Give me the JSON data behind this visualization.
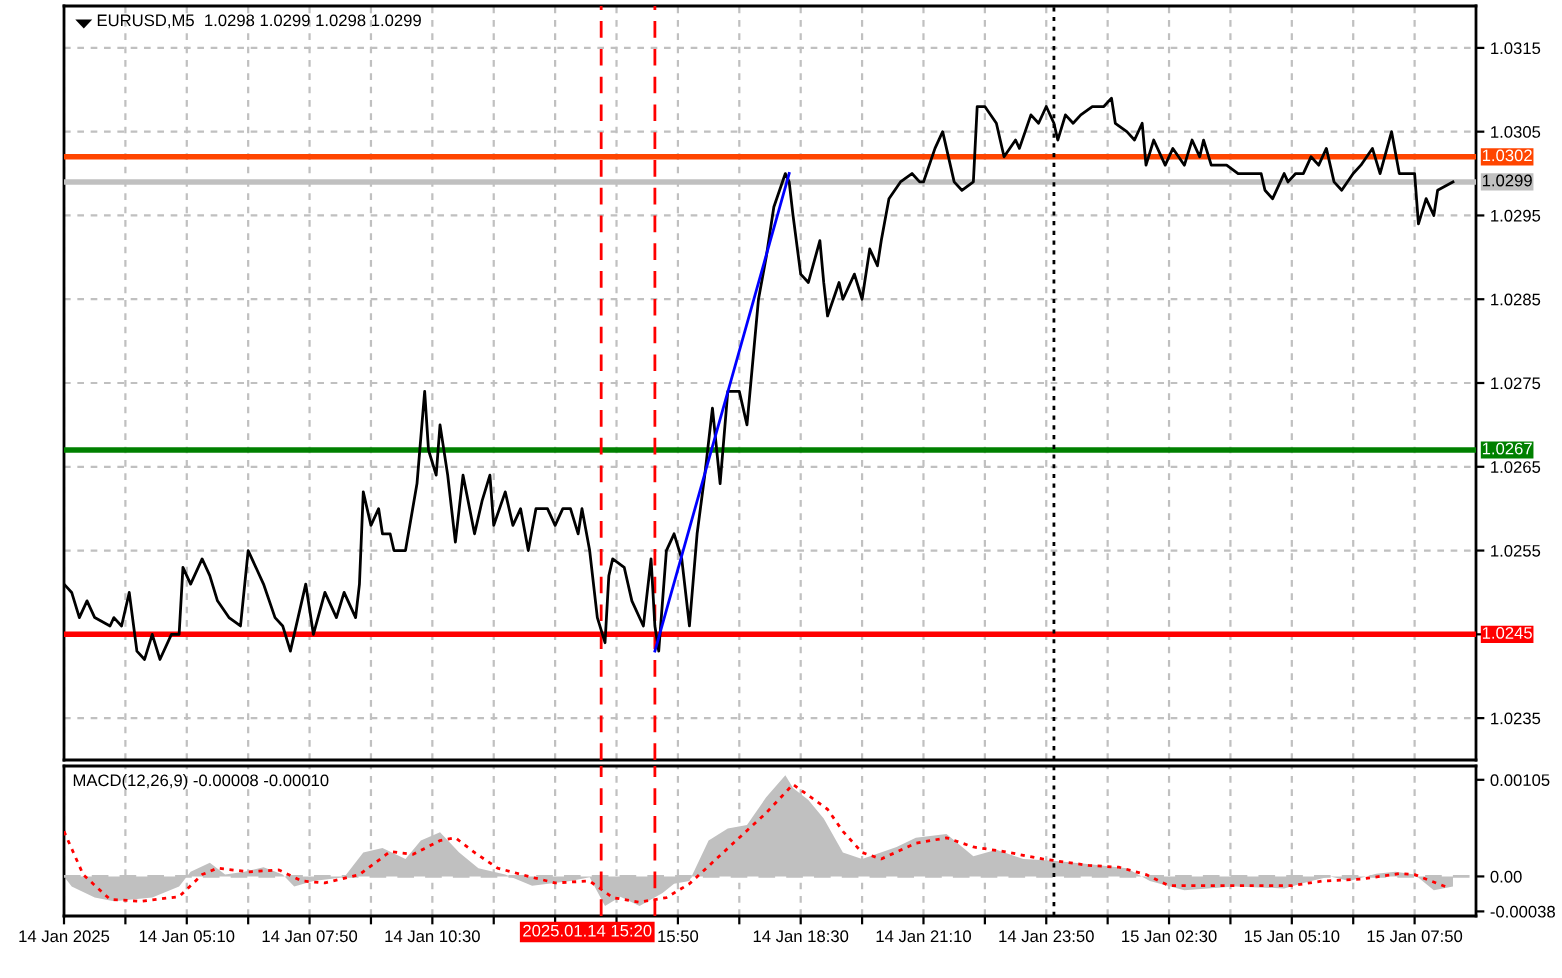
{
  "chart_data": [
    {
      "type": "line",
      "title": "EURUSD,M5  1.0298 1.0299 1.0298 1.0299",
      "grid": true,
      "tick_labels": "y",
      "x": [
        "2025-01-14T02:30",
        "2025-01-14T02:40",
        "2025-01-14T02:50",
        "2025-01-14T03:00",
        "2025-01-14T03:10",
        "2025-01-14T03:30",
        "2025-01-14T03:35",
        "2025-01-14T03:45",
        "2025-01-14T03:55",
        "2025-01-14T04:05",
        "2025-01-14T04:15",
        "2025-01-14T04:25",
        "2025-01-14T04:35",
        "2025-01-14T04:50",
        "2025-01-14T05:00",
        "2025-01-14T05:05",
        "2025-01-14T05:15",
        "2025-01-14T05:30",
        "2025-01-14T05:40",
        "2025-01-14T05:50",
        "2025-01-14T06:05",
        "2025-01-14T06:20",
        "2025-01-14T06:30",
        "2025-01-14T06:50",
        "2025-01-14T07:05",
        "2025-01-14T07:15",
        "2025-01-14T07:25",
        "2025-01-14T07:45",
        "2025-01-14T07:55",
        "2025-01-14T08:10",
        "2025-01-14T08:25",
        "2025-01-14T08:35",
        "2025-01-14T08:50",
        "2025-01-14T08:55",
        "2025-01-14T09:00",
        "2025-01-14T09:10",
        "2025-01-14T09:20",
        "2025-01-14T09:25",
        "2025-01-14T09:35",
        "2025-01-14T09:40",
        "2025-01-14T09:55",
        "2025-01-14T10:10",
        "2025-01-14T10:20",
        "2025-01-14T10:25",
        "2025-01-14T10:35",
        "2025-01-14T10:40",
        "2025-01-14T10:50",
        "2025-01-14T11:00",
        "2025-01-14T11:10",
        "2025-01-14T11:25",
        "2025-01-14T11:35",
        "2025-01-14T11:45",
        "2025-01-14T11:50",
        "2025-01-14T12:05",
        "2025-01-14T12:15",
        "2025-01-14T12:25",
        "2025-01-14T12:35",
        "2025-01-14T12:45",
        "2025-01-14T13:00",
        "2025-01-14T13:10",
        "2025-01-14T13:20",
        "2025-01-14T13:30",
        "2025-01-14T13:40",
        "2025-01-14T13:45",
        "2025-01-14T13:55",
        "2025-01-14T14:05",
        "2025-01-14T14:15",
        "2025-01-14T14:20",
        "2025-01-14T14:25",
        "2025-01-14T14:40",
        "2025-01-14T14:50",
        "2025-01-14T15:05",
        "2025-01-14T15:15",
        "2025-01-14T15:20",
        "2025-01-14T15:25",
        "2025-01-14T15:35",
        "2025-01-14T15:45",
        "2025-01-14T15:55",
        "2025-01-14T16:05",
        "2025-01-14T16:15",
        "2025-01-14T16:25",
        "2025-01-14T16:35",
        "2025-01-14T16:45",
        "2025-01-14T16:55",
        "2025-01-14T17:10",
        "2025-01-14T17:20",
        "2025-01-14T17:35",
        "2025-01-14T17:45",
        "2025-01-14T17:55",
        "2025-01-14T18:10",
        "2025-01-14T18:15",
        "2025-01-14T18:20",
        "2025-01-14T18:30",
        "2025-01-14T18:40",
        "2025-01-14T18:55",
        "2025-01-14T19:00",
        "2025-01-14T19:05",
        "2025-01-14T19:20",
        "2025-01-14T19:25",
        "2025-01-14T19:40",
        "2025-01-14T19:50",
        "2025-01-14T20:00",
        "2025-01-14T20:10",
        "2025-01-14T20:15",
        "2025-01-14T20:25",
        "2025-01-14T20:40",
        "2025-01-14T20:55",
        "2025-01-14T21:05",
        "2025-01-14T21:10",
        "2025-01-14T21:25",
        "2025-01-14T21:35",
        "2025-01-14T21:50",
        "2025-01-14T22:00",
        "2025-01-14T22:15",
        "2025-01-14T22:20",
        "2025-01-14T22:30",
        "2025-01-14T22:45",
        "2025-01-14T22:55",
        "2025-01-14T23:10",
        "2025-01-14T23:15",
        "2025-01-14T23:30",
        "2025-01-14T23:40",
        "2025-01-14T23:50",
        "2025-01-15T00:00",
        "2025-01-15T00:05",
        "2025-01-15T00:15",
        "2025-01-15T00:25",
        "2025-01-15T00:35",
        "2025-01-15T00:50",
        "2025-01-15T01:05",
        "2025-01-15T01:15",
        "2025-01-15T01:20",
        "2025-01-15T01:35",
        "2025-01-15T01:45",
        "2025-01-15T01:55",
        "2025-01-15T02:00",
        "2025-01-15T02:10",
        "2025-01-15T02:25",
        "2025-01-15T02:35",
        "2025-01-15T02:50",
        "2025-01-15T03:00",
        "2025-01-15T03:10",
        "2025-01-15T03:15",
        "2025-01-15T03:25",
        "2025-01-15T03:45",
        "2025-01-15T04:00",
        "2025-01-15T04:10",
        "2025-01-15T04:30",
        "2025-01-15T04:35",
        "2025-01-15T04:45",
        "2025-01-15T05:00",
        "2025-01-15T05:05",
        "2025-01-15T05:15",
        "2025-01-15T05:25",
        "2025-01-15T05:35",
        "2025-01-15T05:45",
        "2025-01-15T05:55",
        "2025-01-15T06:05",
        "2025-01-15T06:15",
        "2025-01-15T06:30",
        "2025-01-15T06:40",
        "2025-01-15T06:55",
        "2025-01-15T07:05",
        "2025-01-15T07:20",
        "2025-01-15T07:30",
        "2025-01-15T07:50",
        "2025-01-15T07:55",
        "2025-01-15T08:05",
        "2025-01-15T08:15",
        "2025-01-15T08:20",
        "2025-01-15T08:40"
      ],
      "series": [
        {
          "color": "#000000",
          "values": [
            1.0251,
            1.025,
            1.0247,
            1.0249,
            1.0247,
            1.0246,
            1.0247,
            1.0246,
            1.025,
            1.0243,
            1.0242,
            1.0245,
            1.0242,
            1.0245,
            1.0245,
            1.0253,
            1.0251,
            1.0254,
            1.0252,
            1.0249,
            1.0247,
            1.0246,
            1.0255,
            1.0251,
            1.0247,
            1.0246,
            1.0243,
            1.0251,
            1.0245,
            1.025,
            1.0247,
            1.025,
            1.0247,
            1.0251,
            1.0262,
            1.0258,
            1.026,
            1.0257,
            1.0257,
            1.0255,
            1.0255,
            1.0263,
            1.0274,
            1.0267,
            1.0264,
            1.027,
            1.0264,
            1.0256,
            1.0264,
            1.0257,
            1.0261,
            1.0264,
            1.0258,
            1.0262,
            1.0258,
            1.026,
            1.0255,
            1.026,
            1.026,
            1.0258,
            1.026,
            1.026,
            1.0257,
            1.026,
            1.0255,
            1.0247,
            1.0244,
            1.0252,
            1.0254,
            1.0253,
            1.0249,
            1.0246,
            1.0254,
            1.0246,
            1.0243,
            1.0255,
            1.0257,
            1.0254,
            1.0246,
            1.0257,
            1.0264,
            1.0272,
            1.0263,
            1.0274,
            1.0274,
            1.027,
            1.0285,
            1.029,
            1.0296,
            1.03,
            1.0299,
            1.0295,
            1.0288,
            1.0287,
            1.0292,
            1.0287,
            1.0283,
            1.0287,
            1.0285,
            1.0288,
            1.0285,
            1.0291,
            1.0289,
            1.0292,
            1.0297,
            1.0299,
            1.03,
            1.0299,
            1.0299,
            1.0303,
            1.0305,
            1.0299,
            1.0298,
            1.0299,
            1.0308,
            1.0308,
            1.0306,
            1.0302,
            1.0304,
            1.0303,
            1.0307,
            1.0306,
            1.0308,
            1.0306,
            1.0304,
            1.0307,
            1.0306,
            1.0307,
            1.0308,
            1.0308,
            1.0309,
            1.0306,
            1.0305,
            1.0304,
            1.0306,
            1.0301,
            1.0304,
            1.0301,
            1.0303,
            1.0301,
            1.0304,
            1.0302,
            1.0304,
            1.0301,
            1.0301,
            1.03,
            1.03,
            1.03,
            1.0298,
            1.0297,
            1.03,
            1.0299,
            1.03,
            1.03,
            1.0302,
            1.0301,
            1.0303,
            1.0299,
            1.0298,
            1.03,
            1.0301,
            1.0303,
            1.03,
            1.0305,
            1.03,
            1.03,
            1.0294,
            1.0297,
            1.0295,
            1.0298,
            1.0299
          ]
        },
        {
          "type": "line",
          "color": "#0000ff",
          "x": [
            "2025-01-14T15:20",
            "2025-01-14T18:15"
          ],
          "values": [
            1.0243,
            1.03
          ]
        }
      ],
      "xlim": [
        "2025-01-14T02:30",
        "2025-01-15T09:10"
      ],
      "xticks": [
        "2025-01-14T02:30",
        "2025-01-14T03:50",
        "2025-01-14T05:10",
        "2025-01-14T06:30",
        "2025-01-14T07:50",
        "2025-01-14T09:10",
        "2025-01-14T10:30",
        "2025-01-14T11:50",
        "2025-01-14T13:10",
        "2025-01-14T14:30",
        "2025-01-14T15:50",
        "2025-01-14T17:10",
        "2025-01-14T18:30",
        "2025-01-14T19:50",
        "2025-01-14T21:10",
        "2025-01-14T22:30",
        "2025-01-14T23:50",
        "2025-01-15T01:10",
        "2025-01-15T02:30",
        "2025-01-15T03:50",
        "2025-01-15T05:10",
        "2025-01-15T06:30",
        "2025-01-15T07:50"
      ],
      "ylim": [
        1.023,
        1.032
      ],
      "yticks": [
        1.0235,
        {
          "value": 1.0245,
          "label": null
        },
        1.0255,
        1.0265,
        1.0275,
        1.0285,
        1.0295,
        1.0305,
        1.0315
      ],
      "ref_lines": [
        {
          "axis": "y",
          "value": 1.0302,
          "label": "1.0302",
          "color": "#ff4500",
          "line_style": "solid"
        },
        {
          "axis": "y",
          "value": 1.0299,
          "label": "1.0299",
          "color": "#c0c0c0",
          "line_style": "solid"
        },
        {
          "axis": "y",
          "value": 1.0267,
          "label": "1.0267",
          "color": "#008000",
          "line_style": "solid"
        },
        {
          "axis": "y",
          "value": 1.0245,
          "label": "1.0245",
          "color": "#ff0000",
          "line_style": "solid"
        },
        {
          "axis": "x",
          "value": "2025-01-14T14:10",
          "color": "#ff0000",
          "line_style": "dashed"
        },
        {
          "axis": "x",
          "value": "2025-01-14T15:20",
          "color": "#ff0000",
          "line_style": "dashed"
        },
        {
          "axis": "x",
          "value": "2025-01-15T00:00",
          "color": "#000000",
          "line_style": "dotted"
        }
      ]
    },
    {
      "type": "line",
      "title": "MACD(12,26,9) -0.00008 -0.00010",
      "grid": "x",
      "series": [
        {
          "type": "area",
          "color": "#c0c0c0",
          "x": [
            "2025-01-14T02:30",
            "2025-01-14T02:40",
            "2025-01-14T03:10",
            "2025-01-14T03:35",
            "2025-01-14T04:25",
            "2025-01-14T05:00",
            "2025-01-14T05:15",
            "2025-01-14T05:40",
            "2025-01-14T06:00",
            "2025-01-14T06:25",
            "2025-01-14T06:50",
            "2025-01-14T07:15",
            "2025-01-14T07:30",
            "2025-01-14T07:55",
            "2025-01-14T08:35",
            "2025-01-14T09:00",
            "2025-01-14T09:25",
            "2025-01-14T09:55",
            "2025-01-14T10:15",
            "2025-01-14T10:40",
            "2025-01-14T11:05",
            "2025-01-14T11:30",
            "2025-01-14T12:05",
            "2025-01-14T12:40",
            "2025-01-14T13:30",
            "2025-01-14T13:55",
            "2025-01-14T14:15",
            "2025-01-14T14:35",
            "2025-01-14T15:00",
            "2025-01-14T15:30",
            "2025-01-14T15:45",
            "2025-01-14T16:05",
            "2025-01-14T16:30",
            "2025-01-14T16:55",
            "2025-01-14T17:20",
            "2025-01-14T17:45",
            "2025-01-14T18:10",
            "2025-01-14T18:20",
            "2025-01-14T18:40",
            "2025-01-14T19:00",
            "2025-01-14T19:25",
            "2025-01-14T19:50",
            "2025-01-14T20:35",
            "2025-01-14T21:00",
            "2025-01-14T21:40",
            "2025-01-14T22:15",
            "2025-01-14T22:45",
            "2025-01-14T23:20",
            "2025-01-15T00:00",
            "2025-01-15T00:50",
            "2025-01-15T01:35",
            "2025-01-15T02:05",
            "2025-01-15T02:50",
            "2025-01-15T03:55",
            "2025-01-15T05:00",
            "2025-01-15T05:35",
            "2025-01-15T06:00",
            "2025-01-15T06:25",
            "2025-01-15T07:00",
            "2025-01-15T07:25",
            "2025-01-15T07:50",
            "2025-01-15T08:15",
            "2025-01-15T08:40"
          ],
          "values": [
            0,
            -0.00011,
            -0.00023,
            -0.00027,
            -0.00023,
            -0.00011,
            5e-05,
            0.00015,
            2e-05,
            5e-05,
            0.0001,
            2e-05,
            -0.00011,
            -5e-05,
            -1e-05,
            0.00026,
            0.00031,
            0.00019,
            0.00039,
            0.00048,
            0.00026,
            9e-05,
            2e-05,
            -0.0001,
            -5e-05,
            -1e-05,
            -0.00032,
            -0.00022,
            -0.00032,
            -0.00018,
            -8e-05,
            -5e-05,
            0.00039,
            0.00052,
            0.00056,
            0.00086,
            0.0011,
            0.00096,
            0.00083,
            0.00063,
            0.00026,
            0.00019,
            0.00032,
            0.00042,
            0.00046,
            0.00022,
            0.00029,
            0.00019,
            0.00017,
            0.00013,
            9e-05,
            -5e-05,
            -0.00015,
            -0.00011,
            -0.00013,
            -5e-05,
            0,
            -5e-05,
            3e-05,
            5e-05,
            2e-05,
            -0.00015,
            -0.00011
          ]
        },
        {
          "type": "line",
          "color": "#ff0000",
          "line_style": "dotted",
          "x": [
            "2025-01-14T02:30",
            "2025-01-14T02:55",
            "2025-01-14T03:30",
            "2025-01-14T04:10",
            "2025-01-14T05:00",
            "2025-01-14T05:30",
            "2025-01-14T05:50",
            "2025-01-14T06:30",
            "2025-01-14T07:10",
            "2025-01-14T07:40",
            "2025-01-14T08:10",
            "2025-01-14T08:55",
            "2025-01-14T09:35",
            "2025-01-14T10:05",
            "2025-01-14T10:40",
            "2025-01-14T11:00",
            "2025-01-14T11:25",
            "2025-01-14T11:55",
            "2025-01-14T12:40",
            "2025-01-14T13:10",
            "2025-01-14T13:55",
            "2025-01-14T14:25",
            "2025-01-14T15:00",
            "2025-01-14T15:35",
            "2025-01-14T16:05",
            "2025-01-14T16:40",
            "2025-01-14T17:15",
            "2025-01-14T17:45",
            "2025-01-14T18:20",
            "2025-01-14T18:55",
            "2025-01-14T19:05",
            "2025-01-14T19:25",
            "2025-01-14T19:50",
            "2025-01-14T20:15",
            "2025-01-14T21:00",
            "2025-01-14T21:40",
            "2025-01-14T22:15",
            "2025-01-14T22:55",
            "2025-01-14T23:45",
            "2025-01-15T00:45",
            "2025-01-15T01:25",
            "2025-01-15T02:00",
            "2025-01-15T02:30",
            "2025-01-15T03:55",
            "2025-01-15T05:10",
            "2025-01-15T05:50",
            "2025-01-15T06:40",
            "2025-01-15T07:30",
            "2025-01-15T07:50",
            "2025-01-15T08:30"
          ],
          "values": [
            0.00049,
            2e-05,
            -0.00025,
            -0.00027,
            -0.00022,
            2e-05,
            9e-05,
            5e-05,
            7e-05,
            -5e-05,
            -7e-05,
            2e-05,
            0.00027,
            0.00024,
            0.00039,
            0.00042,
            0.00026,
            9e-05,
            -1e-05,
            -7e-05,
            -5e-05,
            -0.00023,
            -0.00028,
            -0.00023,
            -8e-05,
            0.00019,
            0.00046,
            0.00069,
            0.001,
            0.00079,
            0.00073,
            0.00049,
            0.00026,
            0.00019,
            0.00036,
            0.00042,
            0.00032,
            0.00027,
            0.00019,
            0.00012,
            0.0001,
            2e-05,
            -0.0001,
            -0.0001,
            -0.0001,
            -5e-05,
            -3e-05,
            3e-05,
            2e-05,
            -0.00011
          ]
        }
      ],
      "xlim": [
        "2025-01-14T02:30",
        "2025-01-15T09:10"
      ],
      "xticks": [
        {
          "value": "2025-01-14T02:30",
          "label": "14 Jan 2025"
        },
        {
          "value": "2025-01-14T03:50",
          "label": null
        },
        {
          "value": "2025-01-14T05:10",
          "label": "14 Jan 05:10"
        },
        {
          "value": "2025-01-14T06:30",
          "label": null
        },
        {
          "value": "2025-01-14T07:50",
          "label": "14 Jan 07:50"
        },
        {
          "value": "2025-01-14T09:10",
          "label": null
        },
        {
          "value": "2025-01-14T10:30",
          "label": "14 Jan 10:30"
        },
        {
          "value": "2025-01-14T11:50",
          "label": null
        },
        {
          "value": "2025-01-14T13:10",
          "label": null
        },
        {
          "value": "2025-01-14T14:30",
          "label": null
        },
        {
          "value": "2025-01-14T15:50",
          "label": "15:50"
        },
        {
          "value": "2025-01-14T17:10",
          "label": null
        },
        {
          "value": "2025-01-14T18:30",
          "label": "14 Jan 18:30"
        },
        {
          "value": "2025-01-14T19:50",
          "label": null
        },
        {
          "value": "2025-01-14T21:10",
          "label": "14 Jan 21:10"
        },
        {
          "value": "2025-01-14T22:30",
          "label": null
        },
        {
          "value": "2025-01-14T23:50",
          "label": "14 Jan 23:50"
        },
        {
          "value": "2025-01-15T01:10",
          "label": null
        },
        {
          "value": "2025-01-15T02:30",
          "label": "15 Jan 02:30"
        },
        {
          "value": "2025-01-15T03:50",
          "label": null
        },
        {
          "value": "2025-01-15T05:10",
          "label": "15 Jan 05:10"
        },
        {
          "value": "2025-01-15T06:30",
          "label": null
        },
        {
          "value": "2025-01-15T07:50",
          "label": "15 Jan 07:50"
        }
      ],
      "ylim": [
        -0.00043,
        0.0012
      ],
      "yticks": [
        {
          "value": -0.00038,
          "label": "-0.00038"
        },
        {
          "value": 0,
          "label": "0.00"
        },
        {
          "value": 0.00105,
          "label": "0.00105"
        }
      ],
      "ref_lines": [
        {
          "axis": "y",
          "value": 0,
          "color": "#c0c0c0",
          "line_style": "dashed"
        },
        {
          "axis": "x",
          "value": "2025-01-14T14:10",
          "color": "#ff0000",
          "line_style": "dashed"
        },
        {
          "axis": "x",
          "value": "2025-01-14T15:20",
          "label": "2025.01.14 15:20",
          "color": "#ff0000",
          "line_style": "dashed"
        },
        {
          "axis": "x",
          "value": "2025-01-15T00:00",
          "color": "#000000",
          "line_style": "dotted"
        }
      ]
    }
  ]
}
